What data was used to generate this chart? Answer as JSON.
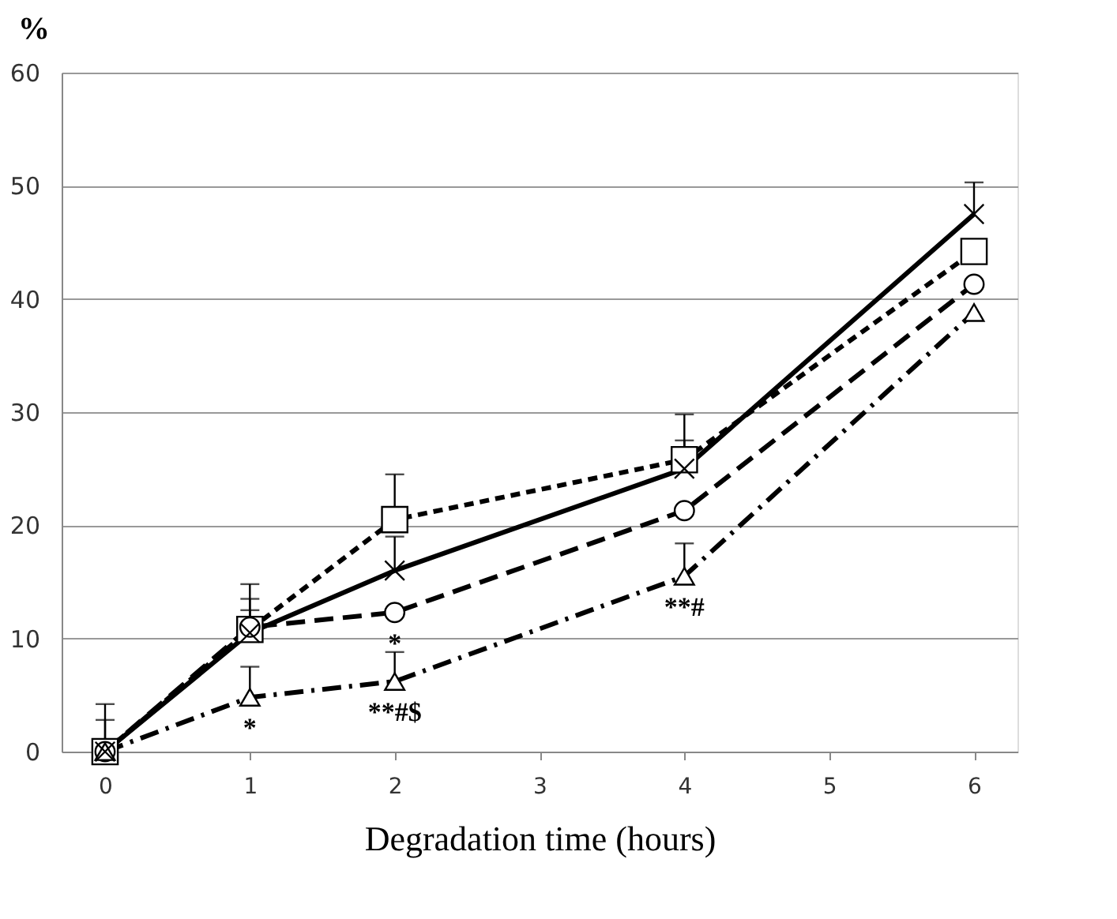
{
  "chart_data": {
    "type": "line",
    "xlabel": "Degradation time (hours)",
    "ylabel": "%",
    "x": [
      0,
      1,
      2,
      4,
      6
    ],
    "series": [
      {
        "color": "#000000",
        "marker": "square",
        "line_style": "dashed",
        "values": [
          0,
          10.8,
          20.5,
          25.8,
          44.2
        ],
        "errors": [
          null,
          [
            10.8,
            14.8
          ],
          [
            20.5,
            24.5
          ],
          [
            25.8,
            29.8
          ],
          null
        ]
      },
      {
        "color": "#000000",
        "marker": "circle",
        "line_style": "longdash",
        "values": [
          0,
          11,
          12.3,
          21.3,
          41.3
        ],
        "errors": [
          [
            0,
            4.2
          ],
          [
            11,
            12.5
          ],
          null,
          null,
          null
        ]
      },
      {
        "color": "#000000",
        "marker": "triangle",
        "line_style": "dashdot",
        "values": [
          0,
          4.8,
          6.2,
          15.5,
          38.8
        ],
        "errors": [
          null,
          [
            4.8,
            7.5
          ],
          [
            6.2,
            8.8
          ],
          [
            15.5,
            18.4
          ],
          null
        ]
      },
      {
        "color": "#000000",
        "marker": "cross",
        "line_style": "solid",
        "values": [
          0,
          10.5,
          16,
          25,
          47.5
        ],
        "errors": [
          [
            0,
            2.8
          ],
          [
            10.5,
            13.5
          ],
          [
            16,
            19
          ],
          [
            25,
            27.5
          ],
          [
            47.5,
            50.3
          ]
        ]
      }
    ],
    "annotations": [
      {
        "text": "*",
        "x": 1,
        "y": 4.8
      },
      {
        "text": "**#$",
        "x": 2,
        "y": 6.2
      },
      {
        "text": "*",
        "x": 2,
        "y": 12.3
      },
      {
        "text": "**#",
        "x": 4,
        "y": 15.5
      }
    ],
    "xlim": [
      -0.3,
      6.3
    ],
    "xticks": [
      0,
      1,
      2,
      3,
      4,
      5,
      6
    ],
    "ylim": [
      0,
      60
    ],
    "yticks": [
      0,
      10,
      20,
      30,
      40,
      50,
      60
    ],
    "grid": "y",
    "legend": false
  }
}
